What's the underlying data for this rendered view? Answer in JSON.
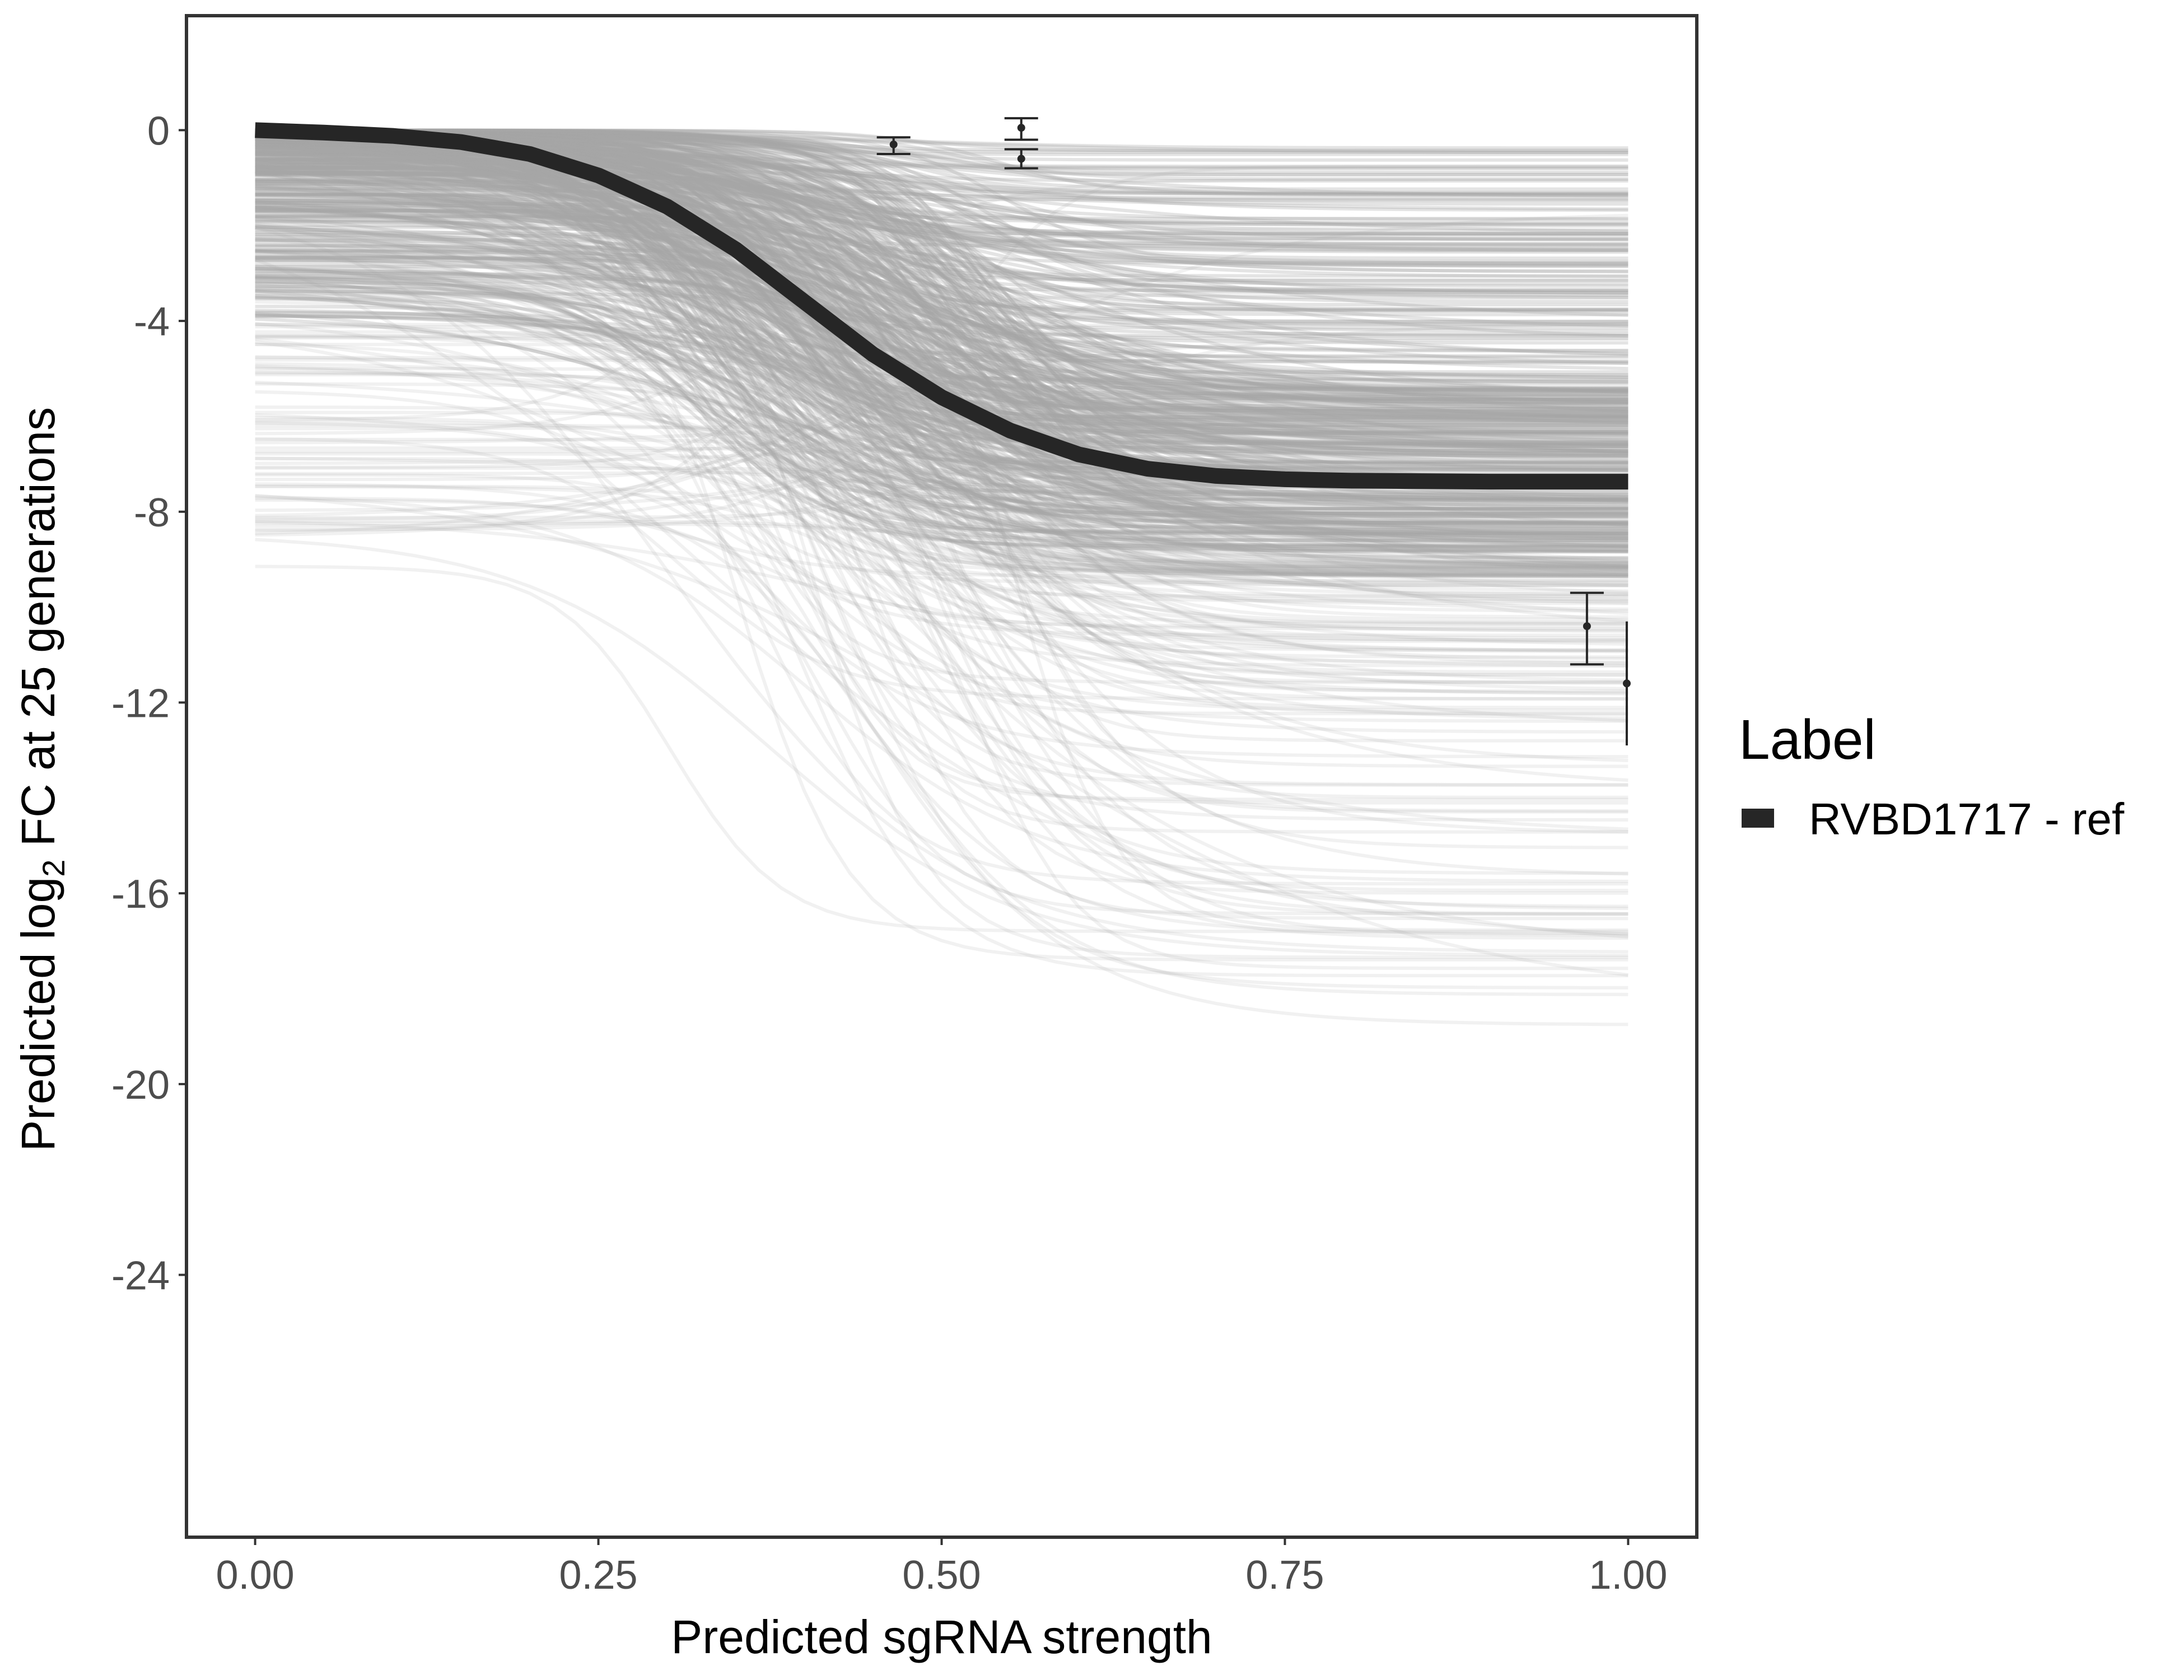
{
  "chart_data": {
    "type": "line",
    "xlabel": "Predicted sgRNA strength",
    "ylabel_parts": {
      "before": "Predicted  log",
      "subscript": "2",
      "after": " FC at 25 generations"
    },
    "xlim": [
      -0.05,
      1.05
    ],
    "ylim": [
      -29.5,
      2.4
    ],
    "x_ticks": [
      0.0,
      0.25,
      0.5,
      0.75,
      1.0
    ],
    "x_tick_labels": [
      "0.00",
      "0.25",
      "0.50",
      "0.75",
      "1.00"
    ],
    "y_ticks": [
      0,
      -4,
      -8,
      -12,
      -16,
      -20,
      -24
    ],
    "y_tick_labels": [
      "0",
      "-4",
      "-8",
      "-12",
      "-16",
      "-20",
      "-24"
    ],
    "grid": false,
    "legend": {
      "title": "Label",
      "position": "right",
      "entries": [
        {
          "label": "RVBD1717 - ref",
          "color": "#262626"
        }
      ]
    },
    "series": [
      {
        "name": "RVBD1717 - ref",
        "color": "#262626",
        "x": [
          0.0,
          0.05,
          0.1,
          0.15,
          0.2,
          0.25,
          0.3,
          0.35,
          0.4,
          0.45,
          0.5,
          0.55,
          0.6,
          0.65,
          0.7,
          0.75,
          0.8,
          0.85,
          0.9,
          0.95,
          1.0
        ],
        "y": [
          0.0,
          -0.05,
          -0.12,
          -0.25,
          -0.5,
          -0.95,
          -1.6,
          -2.5,
          -3.6,
          -4.7,
          -5.6,
          -6.3,
          -6.8,
          -7.1,
          -7.25,
          -7.32,
          -7.35,
          -7.36,
          -7.37,
          -7.37,
          -7.37
        ]
      }
    ],
    "posterior_draws": {
      "color": "#a6a6a6",
      "description_count": 600,
      "asymptote_range": [
        -18.8,
        -0.3
      ]
    },
    "error_bars": [
      {
        "x": 0.465,
        "y": -0.3,
        "ymin": -0.5,
        "ymax": -0.15
      },
      {
        "x": 0.558,
        "y": 0.05,
        "ymin": -0.2,
        "ymax": 0.25
      },
      {
        "x": 0.558,
        "y": -0.6,
        "ymin": -0.8,
        "ymax": -0.4
      },
      {
        "x": 0.97,
        "y": -10.4,
        "ymin": -11.2,
        "ymax": -9.7
      },
      {
        "x": 0.999,
        "y": -11.6,
        "ymin": -12.9,
        "ymax": -10.3
      }
    ]
  }
}
